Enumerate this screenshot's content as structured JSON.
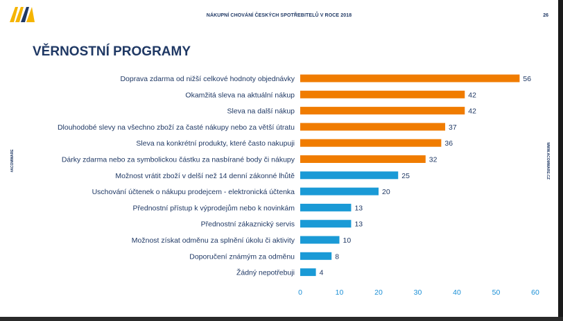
{
  "header": {
    "title": "NÁKUPNÍ CHOVÁNÍ ČESKÝCH SPOTŘEBITELŮ V ROCE 2018",
    "page_number": "26"
  },
  "slide_title": "VĚRNOSTNÍ PROGRAMY",
  "side": {
    "left_text": "#ACOMWARE",
    "right_text": "WWW.ACOMWARE.CZ"
  },
  "colors": {
    "orange": "#f07c00",
    "blue": "#1a9ad6",
    "logo_yellow": "#f5b400",
    "logo_dark": "#1f3864"
  },
  "chart_data": {
    "type": "bar",
    "orientation": "horizontal",
    "categories": [
      "Doprava zdarma od nižší celkové hodnoty objednávky",
      "Okamžitá sleva na aktuální nákup",
      "Sleva na další nákup",
      "Dlouhodobé slevy na všechno zboží za časté nákupy nebo za větší útratu",
      "Sleva na konkrétní produkty, které často nakupuji",
      "Dárky zdarma nebo za symbolickou částku za nasbírané body či nákupy",
      "Možnost vrátit zboží v delší než 14 denní zákonné lhůtě",
      "Uschování účtenek o nákupu prodejcem - elektronická účtenka",
      "Přednostní přístup k výprodejům nebo k novinkám",
      "Přednostní zákaznický servis",
      "Možnost získat odměnu za splnění úkolu či aktivity",
      "Doporučení známým za odměnu",
      "Žádný nepotřebuji"
    ],
    "values": [
      56,
      42,
      42,
      37,
      36,
      32,
      25,
      20,
      13,
      13,
      10,
      8,
      4
    ],
    "bar_colors": [
      "orange",
      "orange",
      "orange",
      "orange",
      "orange",
      "orange",
      "blue",
      "blue",
      "blue",
      "blue",
      "blue",
      "blue",
      "blue"
    ],
    "xlim": [
      0,
      60
    ],
    "xticks": [
      "0",
      "10",
      "20",
      "30",
      "40",
      "50",
      "60"
    ],
    "grid": false,
    "title": "VĚRNOSTNÍ PROGRAMY"
  }
}
